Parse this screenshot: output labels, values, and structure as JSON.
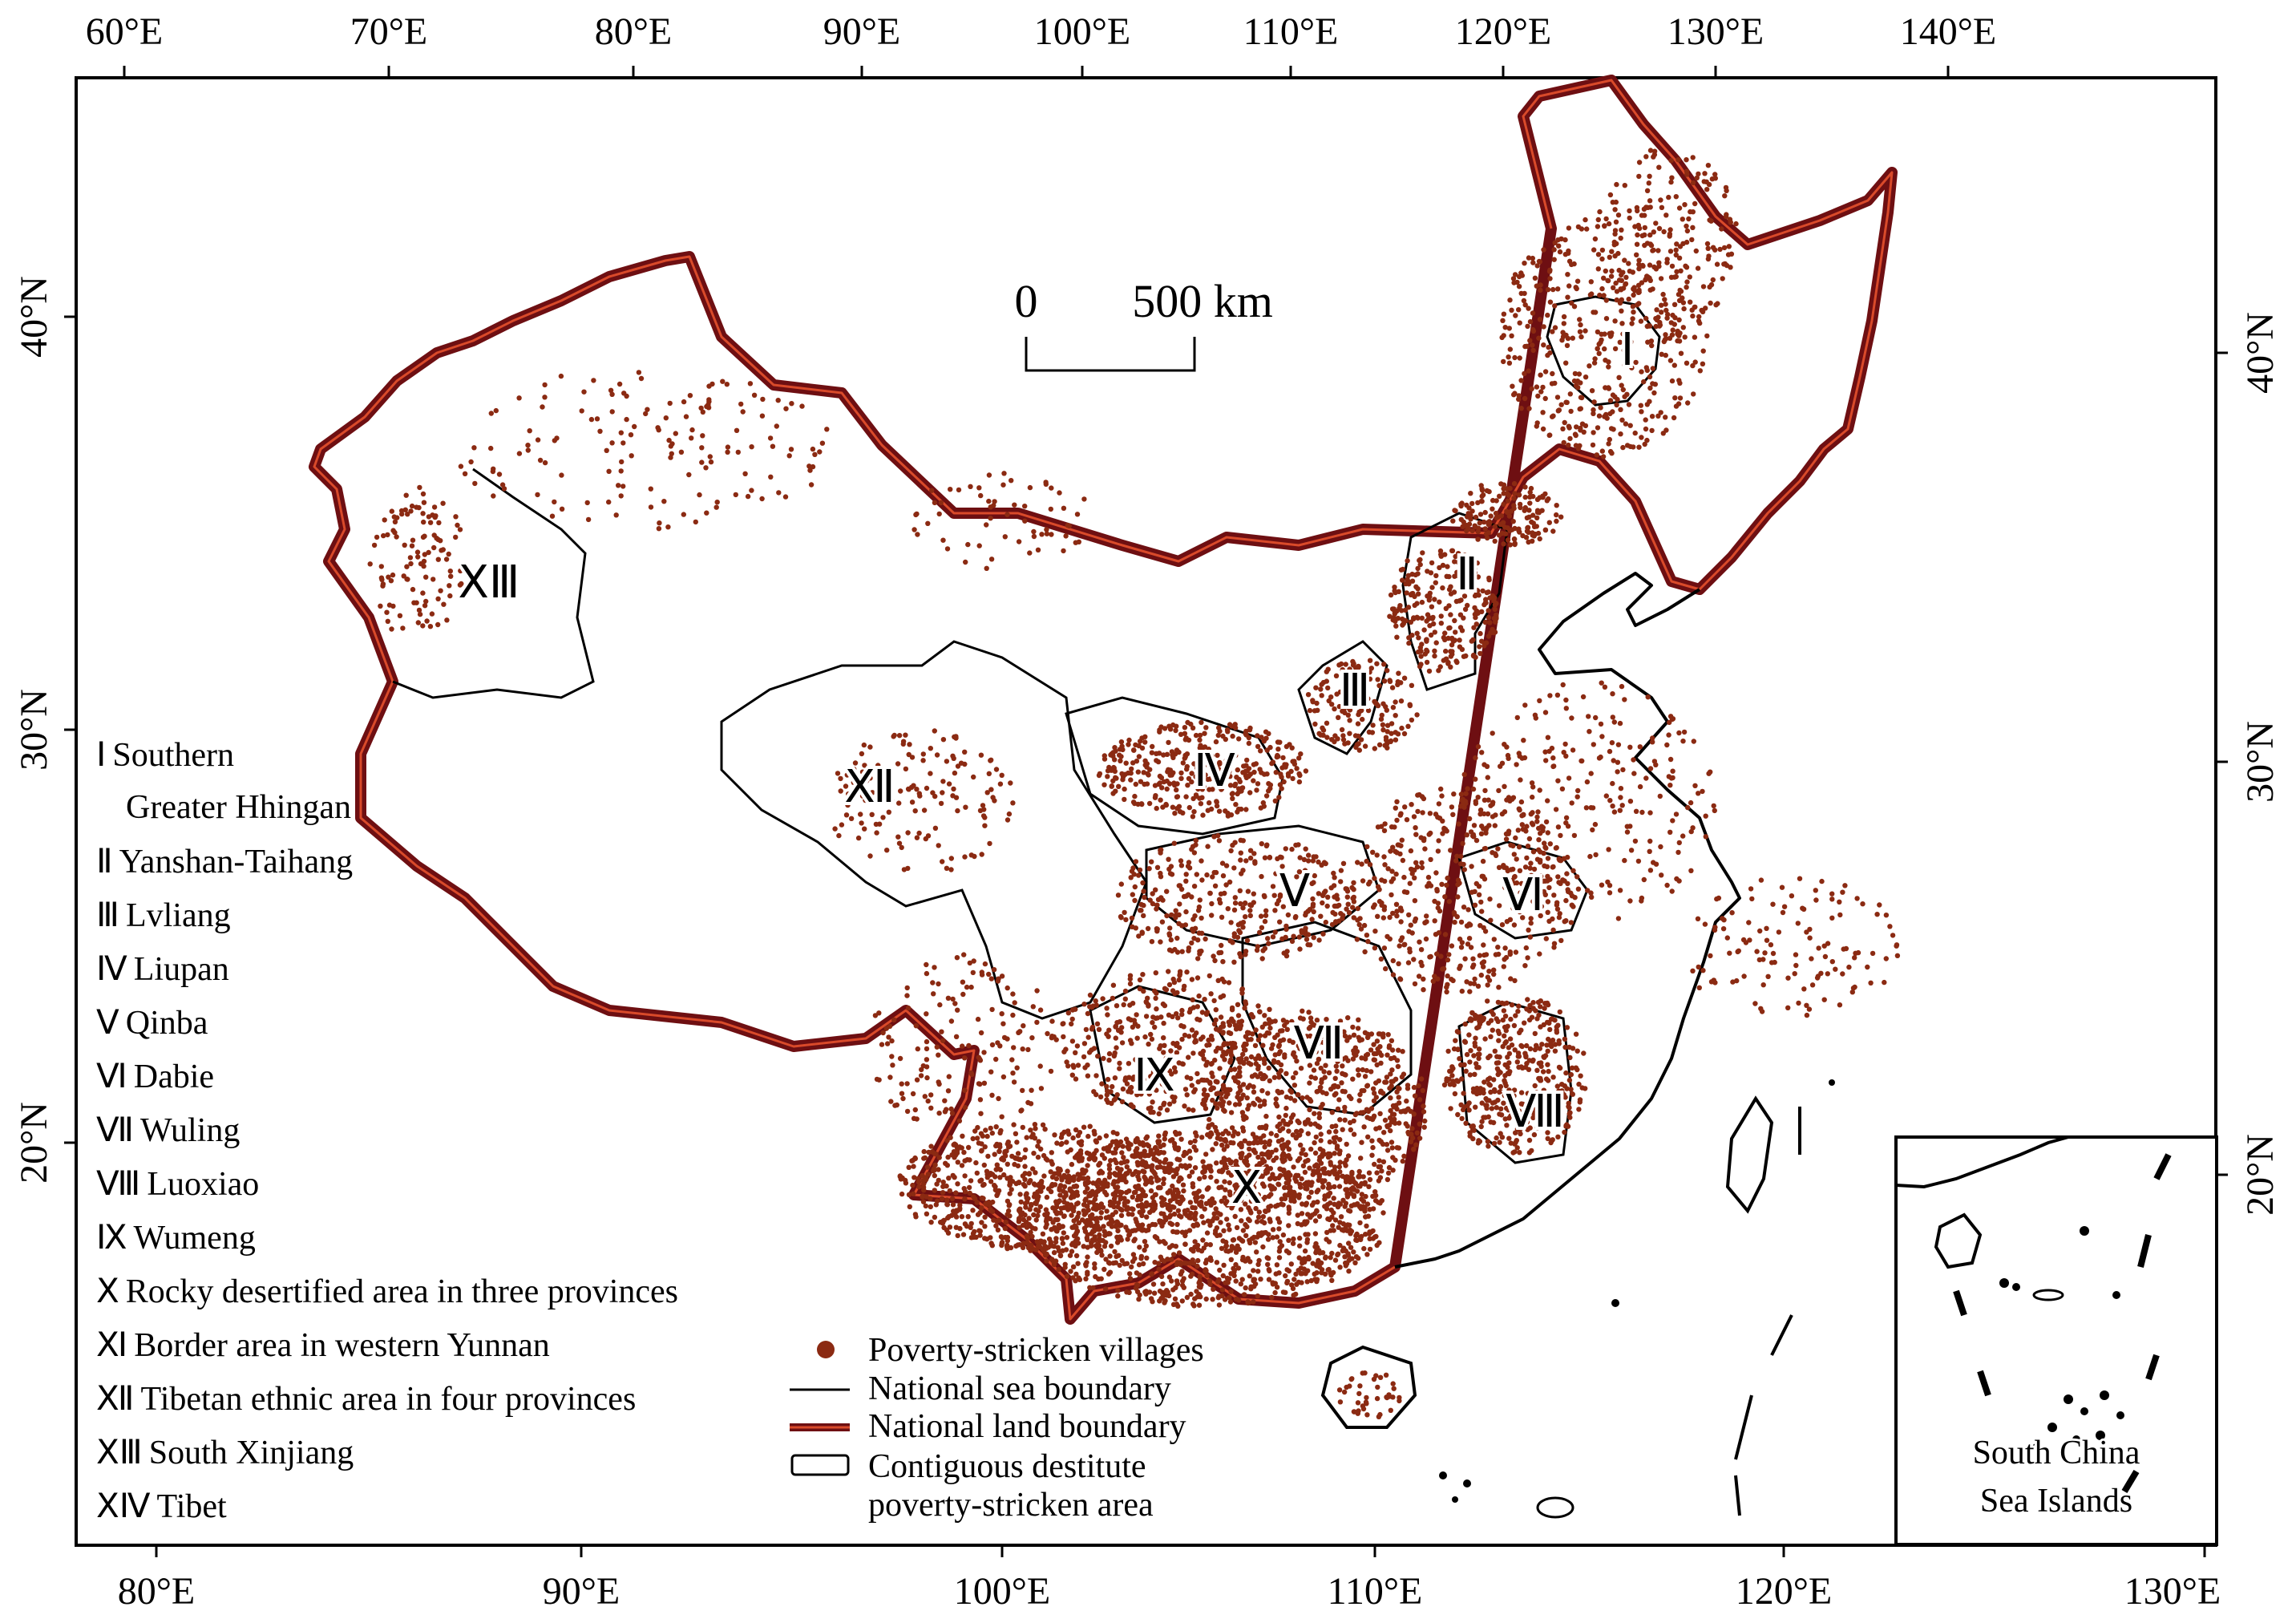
{
  "map": {
    "top_longitudes": [
      "60°E",
      "70°E",
      "80°E",
      "90°E",
      "100°E",
      "110°E",
      "120°E",
      "130°E",
      "140°E"
    ],
    "bottom_longitudes": [
      "80°E",
      "90°E",
      "100°E",
      "110°E",
      "120°E",
      "130°E"
    ],
    "left_latitudes": [
      "40°N",
      "30°N",
      "20°N"
    ],
    "right_latitudes": [
      "40°N",
      "30°N",
      "20°N"
    ],
    "scale_bar": {
      "start": "0",
      "end": "500 km"
    },
    "regions": [
      {
        "numeral": "Ⅰ",
        "name": "Southern",
        "name_cont": "Greater Hhingan"
      },
      {
        "numeral": "Ⅱ",
        "name": "Yanshan-Taihang"
      },
      {
        "numeral": "Ⅲ",
        "name": "Lvliang"
      },
      {
        "numeral": "Ⅳ",
        "name": "Liupan"
      },
      {
        "numeral": "Ⅴ",
        "name": "Qinba"
      },
      {
        "numeral": "Ⅵ",
        "name": "Dabie"
      },
      {
        "numeral": "Ⅶ",
        "name": "Wuling"
      },
      {
        "numeral": "Ⅷ",
        "name": "Luoxiao"
      },
      {
        "numeral": "Ⅸ",
        "name": "Wumeng"
      },
      {
        "numeral": "Ⅹ",
        "name": "Rocky desertified area in three provinces"
      },
      {
        "numeral": "Ⅺ",
        "name": "Border area in western Yunnan"
      },
      {
        "numeral": "Ⅻ",
        "name": "Tibetan ethnic area in four provinces"
      },
      {
        "numeral": "ⅩⅢ",
        "name": "South Xinjiang"
      },
      {
        "numeral": "ⅩⅣ",
        "name": "Tibet"
      }
    ],
    "legend": {
      "villages": "Poverty-stricken villages",
      "sea_boundary": "National sea boundary",
      "land_boundary": "National land boundary",
      "area_line1": "Contiguous destitute",
      "area_line2": "poverty-stricken area"
    },
    "inset": {
      "line1": "South China",
      "line2": "Sea Islands"
    },
    "colors": {
      "villages": "#8b2a12",
      "land_boundary": "#6e0f12",
      "land_boundary_core": "#d94a2a",
      "frame": "#000000"
    }
  }
}
